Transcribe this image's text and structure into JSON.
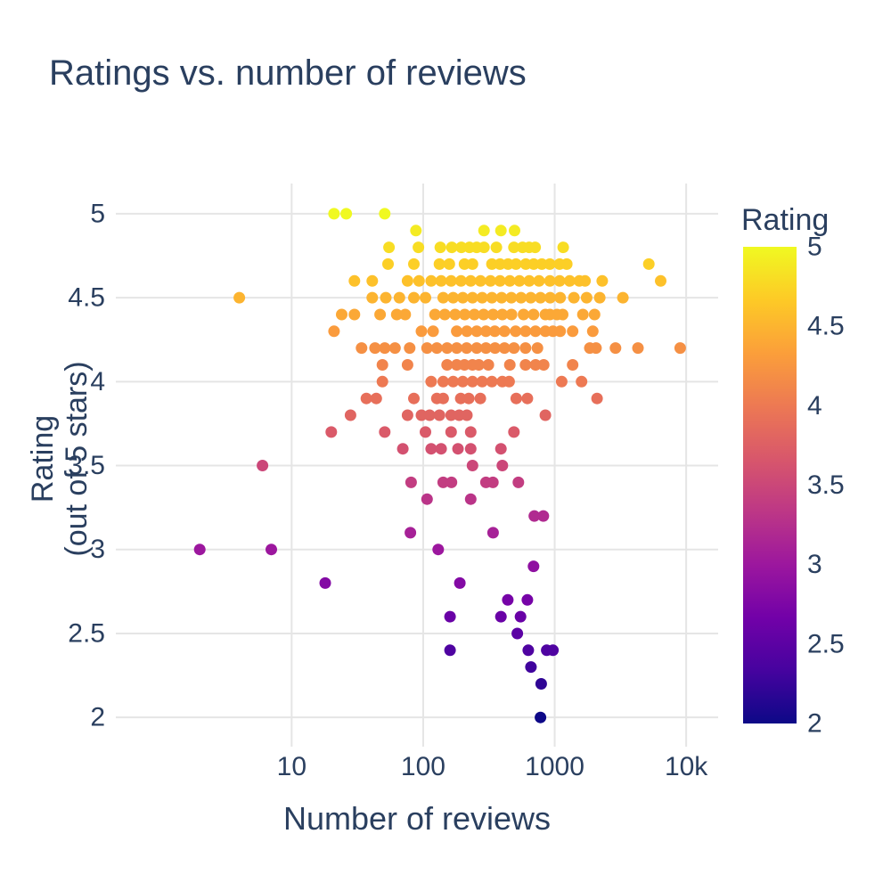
{
  "colors": {
    "text": "#2a3f5f",
    "grid": "#e5e5e5",
    "background": "#ffffff"
  },
  "chart_data": {
    "type": "scatter",
    "title": "Ratings vs. number of reviews",
    "xlabel": "Number of reviews",
    "ylabel_lines": [
      "Rating",
      "(out of 5 stars)"
    ],
    "x_scale": "log",
    "xlim": [
      0.46,
      17500
    ],
    "ylim": [
      1.9,
      5.18
    ],
    "grid": true,
    "x_ticks": [
      {
        "value": 10,
        "label": "10"
      },
      {
        "value": 100,
        "label": "100"
      },
      {
        "value": 1000,
        "label": "1000"
      },
      {
        "value": 10000,
        "label": "10k"
      }
    ],
    "y_ticks": [
      {
        "value": 5,
        "label": "5"
      },
      {
        "value": 4.5,
        "label": "4.5"
      },
      {
        "value": 4,
        "label": "4"
      },
      {
        "value": 3.5,
        "label": "3.5"
      },
      {
        "value": 3,
        "label": "3"
      },
      {
        "value": 2.5,
        "label": "2.5"
      },
      {
        "value": 2,
        "label": "2"
      }
    ],
    "colorbar": {
      "title": "Rating",
      "min": 2,
      "max": 5,
      "ticks": [
        {
          "value": 5,
          "label": "5"
        },
        {
          "value": 4.5,
          "label": "4.5"
        },
        {
          "value": 4,
          "label": "4"
        },
        {
          "value": 3.5,
          "label": "3.5"
        },
        {
          "value": 3,
          "label": "3"
        },
        {
          "value": 2.5,
          "label": "2.5"
        },
        {
          "value": 2,
          "label": "2"
        }
      ],
      "colorscale_name": "Plasma",
      "colorscale": [
        [
          0.0,
          "#0d0887"
        ],
        [
          0.1111,
          "#46039f"
        ],
        [
          0.2222,
          "#7201a8"
        ],
        [
          0.3333,
          "#9c179e"
        ],
        [
          0.4444,
          "#bd3786"
        ],
        [
          0.5556,
          "#d8576b"
        ],
        [
          0.6667,
          "#ed7953"
        ],
        [
          0.7778,
          "#fb9f3a"
        ],
        [
          0.8889,
          "#fdca26"
        ],
        [
          1.0,
          "#f0f921"
        ]
      ]
    },
    "points": [
      [
        21,
        5
      ],
      [
        26,
        5
      ],
      [
        51,
        5
      ],
      [
        88,
        4.9
      ],
      [
        290,
        4.9
      ],
      [
        390,
        4.9
      ],
      [
        495,
        4.9
      ],
      [
        55,
        4.8
      ],
      [
        92,
        4.8
      ],
      [
        135,
        4.8
      ],
      [
        165,
        4.8
      ],
      [
        195,
        4.8
      ],
      [
        225,
        4.8
      ],
      [
        255,
        4.8
      ],
      [
        290,
        4.8
      ],
      [
        360,
        4.8
      ],
      [
        490,
        4.8
      ],
      [
        570,
        4.8
      ],
      [
        640,
        4.8
      ],
      [
        710,
        4.8
      ],
      [
        1160,
        4.8
      ],
      [
        54,
        4.7
      ],
      [
        85,
        4.7
      ],
      [
        133,
        4.7
      ],
      [
        158,
        4.7
      ],
      [
        206,
        4.7
      ],
      [
        237,
        4.7
      ],
      [
        333,
        4.7
      ],
      [
        384,
        4.7
      ],
      [
        442,
        4.7
      ],
      [
        508,
        4.7
      ],
      [
        603,
        4.7
      ],
      [
        693,
        4.7
      ],
      [
        798,
        4.7
      ],
      [
        918,
        4.7
      ],
      [
        1089,
        4.7
      ],
      [
        1236,
        4.7
      ],
      [
        5200,
        4.7
      ],
      [
        30,
        4.6
      ],
      [
        41,
        4.6
      ],
      [
        76,
        4.6
      ],
      [
        93,
        4.6
      ],
      [
        115,
        4.6
      ],
      [
        137,
        4.6
      ],
      [
        163,
        4.6
      ],
      [
        194,
        4.6
      ],
      [
        230,
        4.6
      ],
      [
        273,
        4.6
      ],
      [
        325,
        4.6
      ],
      [
        384,
        4.6
      ],
      [
        456,
        4.6
      ],
      [
        540,
        4.6
      ],
      [
        641,
        4.6
      ],
      [
        760,
        4.6
      ],
      [
        920,
        4.6
      ],
      [
        1090,
        4.6
      ],
      [
        1300,
        4.6
      ],
      [
        1540,
        4.6
      ],
      [
        1700,
        4.6
      ],
      [
        2300,
        4.6
      ],
      [
        6400,
        4.6
      ],
      [
        4,
        4.5
      ],
      [
        41,
        4.5
      ],
      [
        52,
        4.5
      ],
      [
        66,
        4.5
      ],
      [
        85,
        4.5
      ],
      [
        104,
        4.5
      ],
      [
        142,
        4.5
      ],
      [
        169,
        4.5
      ],
      [
        200,
        4.5
      ],
      [
        237,
        4.5
      ],
      [
        281,
        4.5
      ],
      [
        333,
        4.5
      ],
      [
        395,
        4.5
      ],
      [
        468,
        4.5
      ],
      [
        555,
        4.5
      ],
      [
        658,
        4.5
      ],
      [
        780,
        4.5
      ],
      [
        925,
        4.5
      ],
      [
        1100,
        4.5
      ],
      [
        1400,
        4.5
      ],
      [
        1750,
        4.5
      ],
      [
        2200,
        4.5
      ],
      [
        3300,
        4.5
      ],
      [
        24,
        4.4
      ],
      [
        30,
        4.4
      ],
      [
        47,
        4.4
      ],
      [
        63,
        4.4
      ],
      [
        73,
        4.4
      ],
      [
        123,
        4.4
      ],
      [
        146,
        4.4
      ],
      [
        175,
        4.4
      ],
      [
        207,
        4.4
      ],
      [
        245,
        4.4
      ],
      [
        288,
        4.4
      ],
      [
        340,
        4.4
      ],
      [
        400,
        4.4
      ],
      [
        470,
        4.4
      ],
      [
        580,
        4.4
      ],
      [
        690,
        4.4
      ],
      [
        850,
        4.4
      ],
      [
        920,
        4.4
      ],
      [
        1040,
        4.4
      ],
      [
        1150,
        4.4
      ],
      [
        1640,
        4.4
      ],
      [
        2010,
        4.4
      ],
      [
        21,
        4.3
      ],
      [
        97,
        4.3
      ],
      [
        119,
        4.3
      ],
      [
        180,
        4.3
      ],
      [
        215,
        4.3
      ],
      [
        255,
        4.3
      ],
      [
        300,
        4.3
      ],
      [
        350,
        4.3
      ],
      [
        415,
        4.3
      ],
      [
        505,
        4.3
      ],
      [
        600,
        4.3
      ],
      [
        715,
        4.3
      ],
      [
        850,
        4.3
      ],
      [
        970,
        4.3
      ],
      [
        1100,
        4.3
      ],
      [
        1370,
        4.3
      ],
      [
        1950,
        4.3
      ],
      [
        34,
        4.2
      ],
      [
        43,
        4.2
      ],
      [
        51,
        4.2
      ],
      [
        61,
        4.2
      ],
      [
        79,
        4.2
      ],
      [
        107,
        4.2
      ],
      [
        127,
        4.2
      ],
      [
        152,
        4.2
      ],
      [
        180,
        4.2
      ],
      [
        214,
        4.2
      ],
      [
        255,
        4.2
      ],
      [
        300,
        4.2
      ],
      [
        352,
        4.2
      ],
      [
        415,
        4.2
      ],
      [
        490,
        4.2
      ],
      [
        600,
        4.2
      ],
      [
        740,
        4.2
      ],
      [
        1850,
        4.2
      ],
      [
        2060,
        4.2
      ],
      [
        2900,
        4.2
      ],
      [
        4300,
        4.2
      ],
      [
        9000,
        4.2
      ],
      [
        49,
        4.1
      ],
      [
        76,
        4.1
      ],
      [
        152,
        4.1
      ],
      [
        180,
        4.1
      ],
      [
        206,
        4.1
      ],
      [
        237,
        4.1
      ],
      [
        265,
        4.1
      ],
      [
        313,
        4.1
      ],
      [
        456,
        4.1
      ],
      [
        600,
        4.1
      ],
      [
        716,
        4.1
      ],
      [
        825,
        4.1
      ],
      [
        1370,
        4.1
      ],
      [
        49,
        4
      ],
      [
        115,
        4
      ],
      [
        142,
        4
      ],
      [
        169,
        4
      ],
      [
        200,
        4
      ],
      [
        237,
        4
      ],
      [
        281,
        4
      ],
      [
        333,
        4
      ],
      [
        400,
        4
      ],
      [
        450,
        4
      ],
      [
        1130,
        4
      ],
      [
        1600,
        4
      ],
      [
        37,
        3.9
      ],
      [
        44,
        3.9
      ],
      [
        85,
        3.9
      ],
      [
        127,
        3.9
      ],
      [
        142,
        3.9
      ],
      [
        193,
        3.9
      ],
      [
        222,
        3.9
      ],
      [
        272,
        3.9
      ],
      [
        510,
        3.9
      ],
      [
        620,
        3.9
      ],
      [
        2100,
        3.9
      ],
      [
        28,
        3.8
      ],
      [
        76,
        3.8
      ],
      [
        97,
        3.8
      ],
      [
        112,
        3.8
      ],
      [
        133,
        3.8
      ],
      [
        163,
        3.8
      ],
      [
        188,
        3.8
      ],
      [
        215,
        3.8
      ],
      [
        850,
        3.8
      ],
      [
        20,
        3.7
      ],
      [
        51,
        3.7
      ],
      [
        104,
        3.7
      ],
      [
        163,
        3.7
      ],
      [
        230,
        3.7
      ],
      [
        490,
        3.7
      ],
      [
        70,
        3.6
      ],
      [
        115,
        3.6
      ],
      [
        137,
        3.6
      ],
      [
        184,
        3.6
      ],
      [
        230,
        3.6
      ],
      [
        390,
        3.6
      ],
      [
        6,
        3.5
      ],
      [
        237,
        3.5
      ],
      [
        400,
        3.5
      ],
      [
        81,
        3.4
      ],
      [
        142,
        3.4
      ],
      [
        164,
        3.4
      ],
      [
        300,
        3.4
      ],
      [
        339,
        3.4
      ],
      [
        530,
        3.4
      ],
      [
        107,
        3.3
      ],
      [
        230,
        3.3
      ],
      [
        700,
        3.2
      ],
      [
        820,
        3.2
      ],
      [
        80,
        3.1
      ],
      [
        340,
        3.1
      ],
      [
        2,
        3
      ],
      [
        7,
        3
      ],
      [
        130,
        3
      ],
      [
        690,
        2.9
      ],
      [
        18,
        2.8
      ],
      [
        190,
        2.8
      ],
      [
        440,
        2.7
      ],
      [
        620,
        2.7
      ],
      [
        160,
        2.6
      ],
      [
        390,
        2.6
      ],
      [
        550,
        2.6
      ],
      [
        520,
        2.5
      ],
      [
        160,
        2.4
      ],
      [
        630,
        2.4
      ],
      [
        870,
        2.4
      ],
      [
        970,
        2.4
      ],
      [
        660,
        2.3
      ],
      [
        790,
        2.2
      ],
      [
        780,
        2
      ]
    ]
  }
}
